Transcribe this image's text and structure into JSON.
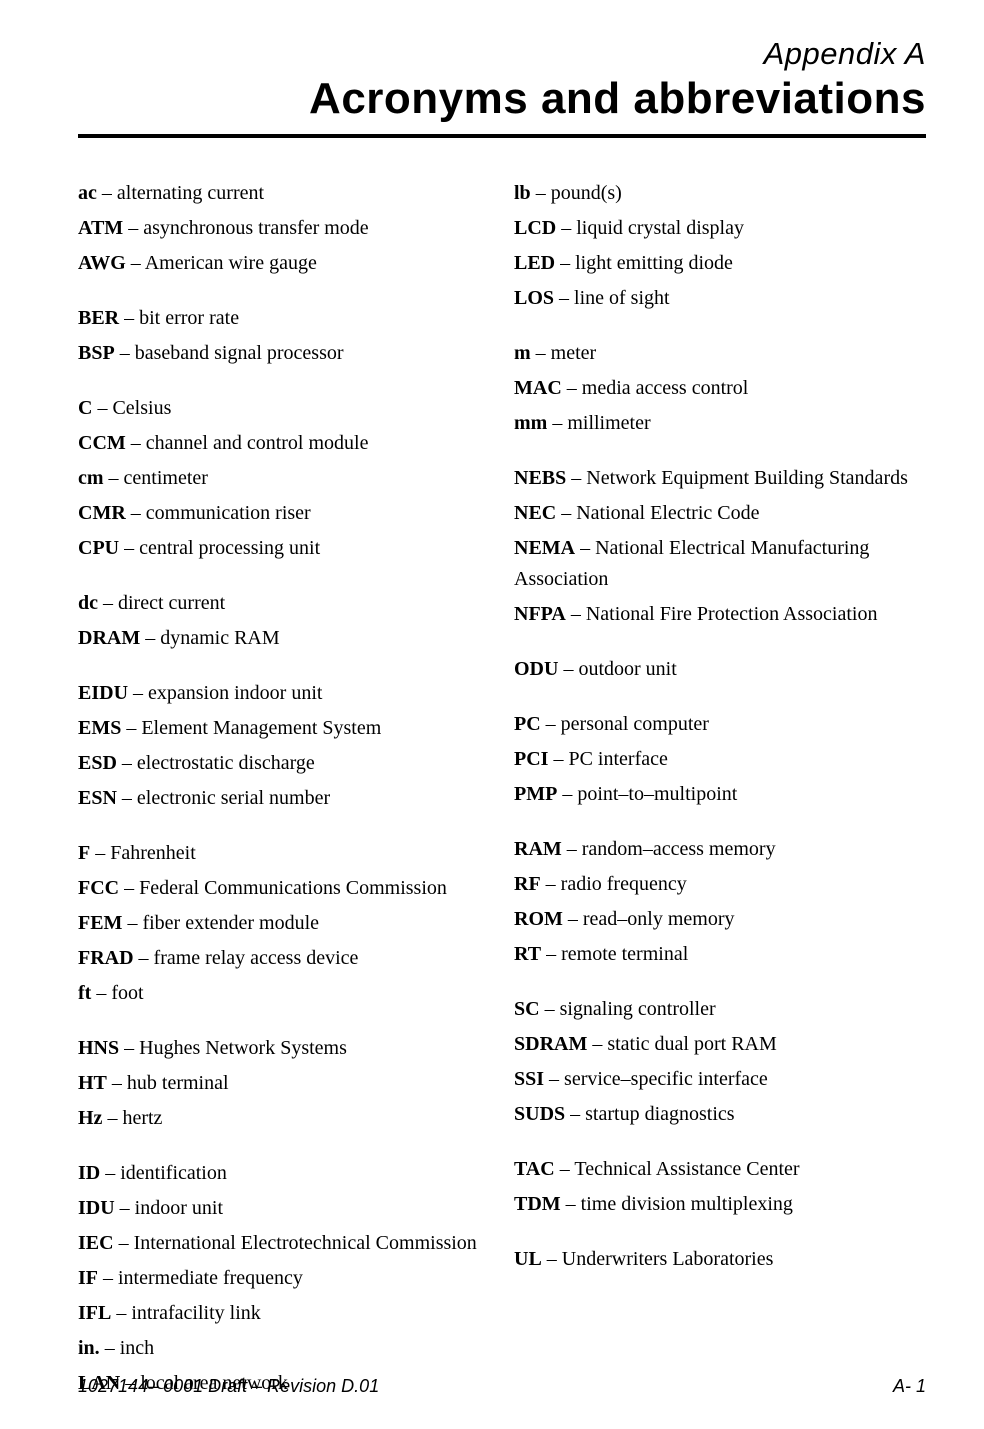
{
  "header": {
    "appendix_label": "Appendix A",
    "title": "Acronyms and abbreviations"
  },
  "left_column": [
    [
      {
        "abbr": "ac",
        "def": "alternating current"
      },
      {
        "abbr": "ATM",
        "def": "asynchronous transfer mode"
      },
      {
        "abbr": "AWG",
        "def": "American wire gauge"
      }
    ],
    [
      {
        "abbr": "BER",
        "def": "bit error rate"
      },
      {
        "abbr": "BSP",
        "def": "baseband signal processor"
      }
    ],
    [
      {
        "abbr": "C",
        "def": "Celsius"
      },
      {
        "abbr": "CCM",
        "def": "channel and control module"
      },
      {
        "abbr": "cm",
        "def": "centimeter"
      },
      {
        "abbr": "CMR",
        "def": "communication riser"
      },
      {
        "abbr": "CPU",
        "def": "central processing unit"
      }
    ],
    [
      {
        "abbr": "dc",
        "def": "direct current"
      },
      {
        "abbr": "DRAM",
        "def": "dynamic RAM"
      }
    ],
    [
      {
        "abbr": "EIDU",
        "def": "expansion indoor unit"
      },
      {
        "abbr": "EMS",
        "def": "Element Management System"
      },
      {
        "abbr": "ESD",
        "def": "electrostatic discharge"
      },
      {
        "abbr": "ESN",
        "def": "electronic serial number"
      }
    ],
    [
      {
        "abbr": "F",
        "def": "Fahrenheit"
      },
      {
        "abbr": "FCC",
        "def": "Federal Communications Commission"
      },
      {
        "abbr": "FEM",
        "def": "fiber extender module"
      },
      {
        "abbr": "FRAD",
        "def": "frame relay access device"
      },
      {
        "abbr": "ft",
        "def": "foot"
      }
    ],
    [
      {
        "abbr": "HNS",
        "def": "Hughes Network Systems"
      },
      {
        "abbr": "HT",
        "def": "hub terminal"
      },
      {
        "abbr": "Hz",
        "def": "hertz"
      }
    ],
    [
      {
        "abbr": "ID",
        "def": "identification"
      },
      {
        "abbr": "IDU",
        "def": "indoor unit"
      },
      {
        "abbr": "IEC",
        "def": "International Electrotechnical Commission"
      },
      {
        "abbr": "IF",
        "def": "intermediate frequency"
      },
      {
        "abbr": "IFL",
        "def": "intrafacility link"
      },
      {
        "abbr": "in.",
        "def": "inch"
      },
      {
        "abbr": "LAN",
        "def": "local area network"
      }
    ]
  ],
  "right_column": [
    [
      {
        "abbr": "lb",
        "def": "pound(s)"
      },
      {
        "abbr": "LCD",
        "def": "liquid crystal display"
      },
      {
        "abbr": "LED",
        "def": "light emitting diode"
      },
      {
        "abbr": "LOS",
        "def": "line of sight"
      }
    ],
    [
      {
        "abbr": "m",
        "def": "meter"
      },
      {
        "abbr": "MAC",
        "def": "media access control"
      },
      {
        "abbr": "mm",
        "def": "millimeter"
      }
    ],
    [
      {
        "abbr": "NEBS",
        "def": "Network Equipment Building Standards"
      },
      {
        "abbr": "NEC",
        "def": "National Electric Code"
      },
      {
        "abbr": "NEMA",
        "def": "National Electrical Manufacturing Association"
      },
      {
        "abbr": "NFPA",
        "def": "National Fire Protection Association"
      }
    ],
    [
      {
        "abbr": "ODU",
        "def": "outdoor unit"
      }
    ],
    [
      {
        "abbr": "PC",
        "def": "personal computer"
      },
      {
        "abbr": "PCI",
        "def": "PC interface"
      },
      {
        "abbr": "PMP",
        "def": "point–to–multipoint"
      }
    ],
    [
      {
        "abbr": "RAM",
        "def": "random–access memory"
      },
      {
        "abbr": "RF",
        "def": "radio frequency"
      },
      {
        "abbr": "ROM",
        "def": "read–only memory"
      },
      {
        "abbr": "RT",
        "def": "remote terminal"
      }
    ],
    [
      {
        "abbr": "SC",
        "def": "signaling controller"
      },
      {
        "abbr": "SDRAM",
        "def": "static dual port RAM"
      },
      {
        "abbr": "SSI",
        "def": "service–specific interface"
      },
      {
        "abbr": "SUDS",
        "def": "startup diagnostics"
      }
    ],
    [
      {
        "abbr": "TAC",
        "def": "Technical Assistance Center"
      },
      {
        "abbr": "TDM",
        "def": "time division multiplexing"
      }
    ],
    [
      {
        "abbr": "UL",
        "def": "Underwriters Laboratories"
      }
    ]
  ],
  "footer": {
    "left": "1027144– 0001  Draft – Revision D.01",
    "right": "A- 1"
  },
  "colors": {
    "text": "#000000",
    "background": "#ffffff",
    "rule": "#000000"
  }
}
